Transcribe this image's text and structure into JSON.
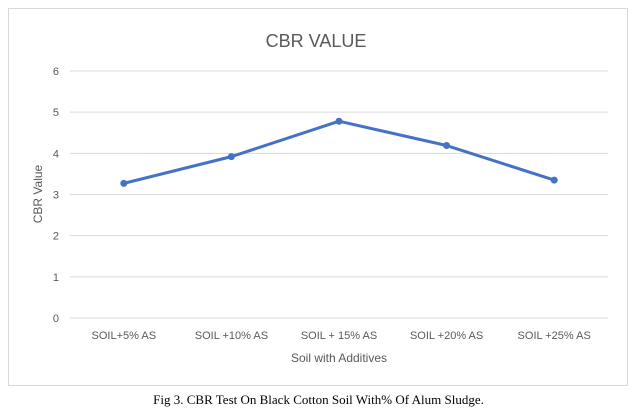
{
  "chart_data": {
    "type": "line",
    "title": "CBR VALUE",
    "xlabel": "Soil with Additives",
    "ylabel": "CBR Value",
    "categories": [
      "SOIL+5% AS",
      "SOIL +10% AS",
      "SOIL + 15% AS",
      "SOIL +20% AS",
      "SOIL +25% AS"
    ],
    "series": [
      {
        "values": [
          3.27,
          3.92,
          4.78,
          4.19,
          3.35
        ],
        "color": "#4472c4"
      }
    ],
    "ylim": [
      0,
      6
    ],
    "yticks": [
      "0",
      "1",
      "2",
      "3",
      "4",
      "5",
      "6"
    ],
    "grid": true
  },
  "caption": "Fig 3. CBR Test On Black Cotton Soil With% Of Alum Sludge."
}
